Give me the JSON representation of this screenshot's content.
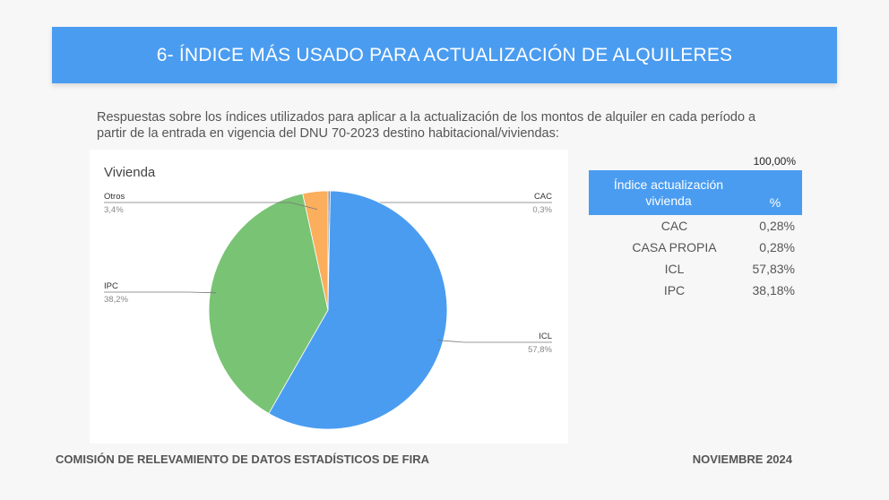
{
  "header": {
    "title": "6- ÍNDICE MÁS USADO PARA ACTUALIZACIÓN DE ALQUILERES"
  },
  "intro": "Respuestas sobre los índices utilizados para aplicar a la actualización de los montos de alquiler en cada período a partir de la entrada en vigencia del DNU 70-2023 destino habitacional/viviendas:",
  "chart_data": {
    "type": "pie",
    "title": "Vivienda",
    "slices": [
      {
        "label": "CAC",
        "value": 0.3,
        "display": "0,3%",
        "color": "#8a8a8a"
      },
      {
        "label": "ICL",
        "value": 57.8,
        "display": "57,8%",
        "color": "#4a9cf0"
      },
      {
        "label": "IPC",
        "value": 38.2,
        "display": "38,2%",
        "color": "#79c374"
      },
      {
        "label": "Otros",
        "value": 3.4,
        "display": "3,4%",
        "color": "#fbae5c"
      }
    ],
    "legend": "none"
  },
  "table": {
    "total": "100,00%",
    "headers": [
      "Índice actualización vivienda",
      "%"
    ],
    "rows": [
      {
        "name": "CAC",
        "pct": "0,28%"
      },
      {
        "name": "CASA PROPIA",
        "pct": "0,28%"
      },
      {
        "name": "ICL",
        "pct": "57,83%"
      },
      {
        "name": "IPC",
        "pct": "38,18%"
      }
    ]
  },
  "footer": {
    "left": "COMISIÓN DE RELEVAMIENTO DE DATOS ESTADÍSTICOS DE FIRA",
    "right": "NOVIEMBRE 2024"
  }
}
